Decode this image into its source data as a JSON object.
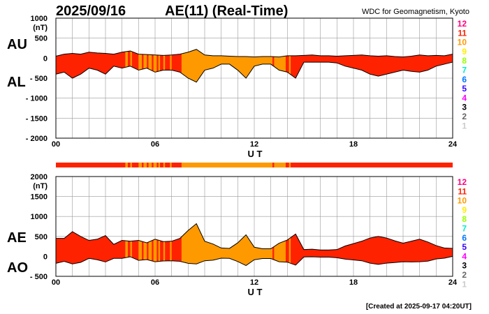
{
  "header": {
    "date": "2025/09/16",
    "title": "AE(11) (Real-Time)",
    "source": "WDC for Geomagnetism, Kyoto"
  },
  "footer": {
    "created": "[Created at 2025-09-17 04:20UT]"
  },
  "legend": {
    "levels": [
      "12",
      "11",
      "10",
      "9",
      "8",
      "7",
      "6",
      "5",
      "4",
      "3",
      "2",
      "1"
    ],
    "colors": [
      "#ff0080",
      "#ff2200",
      "#ff9900",
      "#ffee00",
      "#99ff00",
      "#00eecc",
      "#0077ff",
      "#3300ff",
      "#ff00ff",
      "#000000",
      "#666666",
      "#cccccc"
    ]
  },
  "chart_data": [
    {
      "type": "area",
      "title": "AU / AL",
      "labels": {
        "upper": "AU",
        "lower": "AL"
      },
      "xlabel": "U T",
      "ylabel": "(nT)",
      "xlim": [
        0,
        24
      ],
      "ylim": [
        -2000,
        1000
      ],
      "xticks": [
        "00",
        "06",
        "12",
        "18",
        "24"
      ],
      "yticks": [
        "1000",
        "500",
        "0",
        "- 500",
        "- 1000",
        "- 1500",
        "- 2000"
      ],
      "grid": true,
      "x_step_hours": 0.5,
      "series": [
        {
          "name": "AU",
          "values": [
            50,
            100,
            120,
            100,
            150,
            130,
            120,
            100,
            150,
            180,
            100,
            90,
            80,
            70,
            80,
            100,
            150,
            220,
            80,
            60,
            60,
            50,
            40,
            40,
            30,
            40,
            40,
            30,
            60,
            60,
            70,
            80,
            60,
            60,
            50,
            60,
            70,
            80,
            60,
            50,
            60,
            40,
            30,
            50,
            80,
            60,
            70,
            60,
            100
          ]
        },
        {
          "name": "AL",
          "values": [
            -400,
            -350,
            -500,
            -400,
            -250,
            -300,
            -400,
            -200,
            -250,
            -200,
            -300,
            -250,
            -350,
            -300,
            -300,
            -350,
            -500,
            -600,
            -300,
            -250,
            -150,
            -150,
            -300,
            -500,
            -200,
            -150,
            -150,
            -300,
            -350,
            -500,
            -100,
            -100,
            -100,
            -100,
            -120,
            -200,
            -250,
            -300,
            -400,
            -450,
            -400,
            -350,
            -300,
            -330,
            -350,
            -300,
            -200,
            -150,
            -100
          ]
        }
      ]
    },
    {
      "type": "area",
      "title": "AE / AO",
      "labels": {
        "upper": "AE",
        "lower": "AO"
      },
      "xlabel": "U T",
      "ylabel": "(nT)",
      "xlim": [
        0,
        24
      ],
      "ylim": [
        -500,
        2000
      ],
      "xticks": [
        "00",
        "06",
        "12",
        "18",
        "24"
      ],
      "yticks": [
        "2000",
        "1500",
        "1000",
        "500",
        "0",
        "- 500"
      ],
      "grid": true,
      "derived": "AE = AU - AL, AO = (AU + AL) / 2"
    }
  ],
  "activity_bar": {
    "default_level": "11",
    "segments": [
      [
        4.2,
        4.35,
        "10"
      ],
      [
        4.5,
        4.6,
        "10"
      ],
      [
        5.0,
        5.2,
        "10"
      ],
      [
        5.3,
        5.5,
        "10"
      ],
      [
        5.6,
        5.8,
        "10"
      ],
      [
        5.9,
        6.1,
        "10"
      ],
      [
        6.2,
        6.3,
        "10"
      ],
      [
        6.5,
        6.6,
        "10"
      ],
      [
        6.9,
        7.0,
        "10"
      ],
      [
        7.6,
        13.1,
        "10"
      ],
      [
        13.2,
        13.9,
        "10"
      ],
      [
        14.1,
        14.2,
        "10"
      ]
    ]
  }
}
